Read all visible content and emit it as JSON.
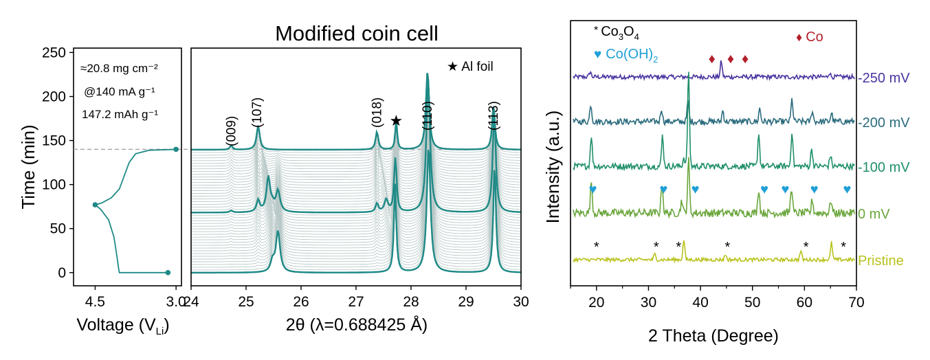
{
  "colors": {
    "teal": "#1f8a86",
    "teal_light": "#b9c9c8",
    "dashed": "#a8a8a8",
    "axis": "#000000",
    "co_marker": "#b3202a",
    "coh_marker": "#1f9fd6",
    "s250": "#4a33a0",
    "s200": "#2a6b7d",
    "s100": "#1f8f6a",
    "s0": "#6aa63c",
    "pristine": "#b8c21c"
  },
  "chart_data": [
    {
      "type": "line",
      "panel": "voltage-time",
      "xlabel_main": "Voltage (V",
      "xlabel_sub": "Li",
      "xlabel_end": ")",
      "ylabel": "Time (min)",
      "x_inverted": true,
      "xlim": [
        4.9,
        2.9
      ],
      "ylim": [
        -15,
        255
      ],
      "xticks": [
        "4.5",
        "3.0"
      ],
      "xtick_values": [
        4.5,
        3.0
      ],
      "yticks": [
        "0",
        "50",
        "100",
        "150",
        "200",
        "250"
      ],
      "ytick_values": [
        0,
        50,
        100,
        150,
        200,
        250
      ],
      "annotations": [
        "≈20.8 mg cm⁻²",
        "@140 mA g⁻¹",
        "147.2 mAh g⁻¹"
      ],
      "dashed_line_y": 140,
      "markers": [
        {
          "x": 3.0,
          "y": 140
        },
        {
          "x": 4.5,
          "y": 77
        },
        {
          "x": 3.15,
          "y": 0
        }
      ],
      "series": [
        {
          "points": [
            [
              3.0,
              140
            ],
            [
              3.5,
              139
            ],
            [
              3.75,
              135
            ],
            [
              3.87,
              125
            ],
            [
              3.96,
              110
            ],
            [
              4.05,
              95
            ],
            [
              4.2,
              85
            ],
            [
              4.38,
              79
            ],
            [
              4.5,
              77
            ],
            [
              4.4,
              72
            ],
            [
              4.25,
              60
            ],
            [
              4.15,
              40
            ],
            [
              4.1,
              20
            ],
            [
              4.06,
              3
            ],
            [
              4.05,
              0
            ],
            [
              3.15,
              0
            ]
          ]
        }
      ]
    },
    {
      "type": "line",
      "panel": "waterfall",
      "title": "Modified coin cell",
      "xlabel": "2θ (λ=0.688425 Å)",
      "xlim": [
        24,
        30
      ],
      "xticks": [
        "24",
        "25",
        "26",
        "27",
        "28",
        "29",
        "30"
      ],
      "xtick_values": [
        24,
        25,
        26,
        27,
        28,
        29,
        30
      ],
      "legend": "★ Al foil",
      "peak_labels": [
        {
          "label": "(009)",
          "x": 24.73
        },
        {
          "label": "(107)",
          "x": 25.2
        },
        {
          "label": "(018)",
          "x": 27.38
        },
        {
          "label": "(110)",
          "x": 28.3
        },
        {
          "label": "(113)",
          "x": 29.5
        }
      ],
      "star_at": 27.73,
      "n_traces": 46,
      "highlighted_traces": [
        0,
        22,
        45
      ],
      "peaks_start": [
        {
          "c": 25.58,
          "h": 0.6,
          "w": 0.045
        },
        {
          "c": 25.48,
          "h": 0.15,
          "w": 0.04
        },
        {
          "c": 27.71,
          "h": 1.3,
          "w": 0.025
        },
        {
          "c": 28.32,
          "h": 1.85,
          "w": 0.04
        },
        {
          "c": 29.52,
          "h": 1.6,
          "w": 0.028
        }
      ],
      "peaks_end": [
        {
          "c": 25.22,
          "h": 0.35,
          "w": 0.035
        },
        {
          "c": 24.73,
          "h": 0.06,
          "w": 0.03
        },
        {
          "c": 27.38,
          "h": 0.26,
          "w": 0.03
        },
        {
          "c": 27.73,
          "h": 0.45,
          "w": 0.02
        },
        {
          "c": 28.3,
          "h": 1.15,
          "w": 0.035
        },
        {
          "c": 29.5,
          "h": 0.65,
          "w": 0.03
        }
      ]
    },
    {
      "type": "line",
      "panel": "xrd",
      "xlabel": "2 Theta (Degree)",
      "ylabel": "Intensity (a.u.)",
      "xlim": [
        15,
        70
      ],
      "xticks": [
        "20",
        "30",
        "40",
        "50",
        "60",
        "70"
      ],
      "xtick_values": [
        20,
        30,
        40,
        50,
        60,
        70
      ],
      "minor_xticks": [
        15,
        25,
        35,
        45,
        55,
        65
      ],
      "legend_items": [
        {
          "symbol": "*",
          "main": "Co",
          "sub1": "3",
          "mid": "O",
          "sub2": "4"
        },
        {
          "symbol": "♥",
          "main": "Co(OH)",
          "sub1": "2"
        },
        {
          "symbol": "♦",
          "main": "Co"
        }
      ],
      "series": [
        {
          "name": "-250 mV",
          "baseline": 0,
          "noise": 0.05,
          "peaks": [
            {
              "c": 18.8,
              "h": 0.12
            },
            {
              "c": 44.0,
              "h": 0.35
            },
            {
              "c": 64.8,
              "h": 0.1
            }
          ],
          "markers": {
            "symbol": "♦",
            "x": [
              42.2,
              45.8,
              48.6
            ]
          }
        },
        {
          "name": "-200 mV",
          "baseline": 1,
          "noise": 0.07,
          "peaks": [
            {
              "c": 18.9,
              "h": 0.4
            },
            {
              "c": 32.5,
              "h": 0.3
            },
            {
              "c": 37.6,
              "h": 0.45
            },
            {
              "c": 44.3,
              "h": 0.25
            },
            {
              "c": 51.4,
              "h": 0.3
            },
            {
              "c": 57.6,
              "h": 0.5
            },
            {
              "c": 61.5,
              "h": 0.25
            },
            {
              "c": 65.2,
              "h": 0.2
            }
          ]
        },
        {
          "name": "-100 mV",
          "baseline": 2,
          "noise": 0.07,
          "peaks": [
            {
              "c": 19.0,
              "h": 0.7
            },
            {
              "c": 32.7,
              "h": 0.7
            },
            {
              "c": 36.8,
              "h": 0.2
            },
            {
              "c": 37.7,
              "h": 2.1
            },
            {
              "c": 51.2,
              "h": 0.75
            },
            {
              "c": 57.6,
              "h": 0.8
            },
            {
              "c": 61.4,
              "h": 0.4
            },
            {
              "c": 65.0,
              "h": 0.25
            }
          ]
        },
        {
          "name": "0 mV",
          "baseline": 3,
          "noise": 0.09,
          "peaks": [
            {
              "c": 19.0,
              "h": 0.7
            },
            {
              "c": 32.6,
              "h": 0.7
            },
            {
              "c": 36.4,
              "h": 0.3
            },
            {
              "c": 37.7,
              "h": 1.2
            },
            {
              "c": 51.2,
              "h": 0.55
            },
            {
              "c": 57.5,
              "h": 0.6
            },
            {
              "c": 61.5,
              "h": 0.3
            },
            {
              "c": 65.1,
              "h": 0.3
            }
          ],
          "markers": {
            "symbol": "♥",
            "x": [
              19.3,
              32.9,
              39.0,
              52.3,
              56.3,
              61.9,
              68.2
            ]
          }
        },
        {
          "name": "Pristine",
          "baseline": 4,
          "noise": 0.04,
          "peaks": [
            {
              "c": 31.2,
              "h": 0.12
            },
            {
              "c": 36.8,
              "h": 0.45
            },
            {
              "c": 44.8,
              "h": 0.12
            },
            {
              "c": 59.3,
              "h": 0.2
            },
            {
              "c": 65.2,
              "h": 0.38
            }
          ],
          "markers": {
            "symbol": "*",
            "x": [
              20.0,
              31.5,
              35.8,
              45.2,
              60.3,
              67.5
            ]
          }
        }
      ]
    }
  ]
}
